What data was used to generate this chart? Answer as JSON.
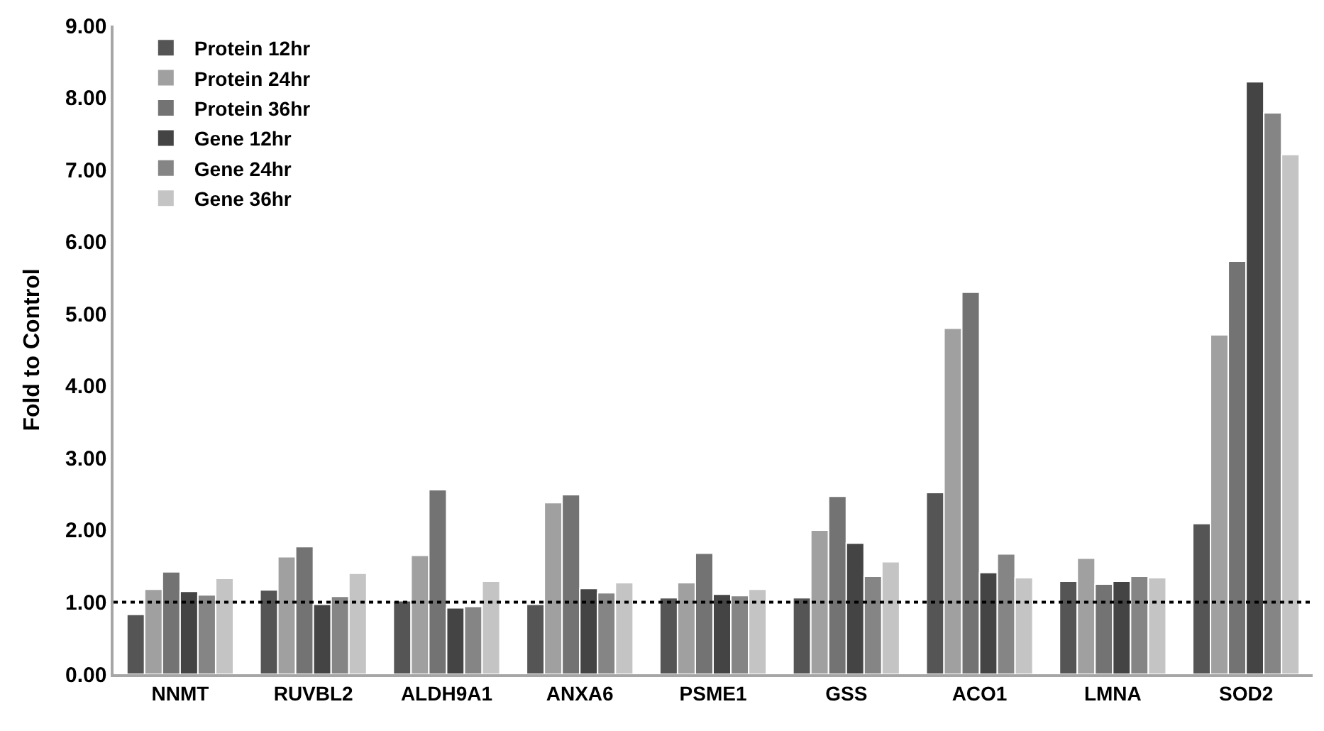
{
  "chart_data": {
    "type": "bar",
    "ylabel": "Fold to Control",
    "categories": [
      "NNMT",
      "RUVBL2",
      "ALDH9A1",
      "ANXA6",
      "PSME1",
      "GSS",
      "ACO1",
      "LMNA",
      "SOD2"
    ],
    "series": [
      {
        "name": "Protein 12hr",
        "color": "#555555",
        "values": [
          0.83,
          1.17,
          1.02,
          0.97,
          1.06,
          1.06,
          2.52,
          1.29,
          2.09
        ]
      },
      {
        "name": "Protein 24hr",
        "color": "#a0a0a0",
        "values": [
          1.18,
          1.63,
          1.65,
          2.38,
          1.27,
          2.0,
          4.8,
          1.61,
          4.71
        ]
      },
      {
        "name": "Protein 36hr",
        "color": "#737373",
        "values": [
          1.42,
          1.77,
          2.56,
          2.49,
          1.68,
          2.47,
          5.3,
          1.25,
          5.73
        ]
      },
      {
        "name": "Gene 12hr",
        "color": "#444444",
        "values": [
          1.15,
          0.97,
          0.92,
          1.19,
          1.11,
          1.82,
          1.41,
          1.29,
          8.22
        ]
      },
      {
        "name": "Gene 24hr",
        "color": "#858585",
        "values": [
          1.1,
          1.08,
          0.94,
          1.13,
          1.09,
          1.36,
          1.67,
          1.36,
          7.79
        ]
      },
      {
        "name": "Gene 36hr",
        "color": "#c4c4c4",
        "values": [
          1.33,
          1.4,
          1.29,
          1.27,
          1.18,
          1.56,
          1.34,
          1.34,
          7.21
        ]
      }
    ],
    "ylim": [
      0,
      9
    ],
    "yticks": [
      {
        "value": 0,
        "label": "0.00"
      },
      {
        "value": 1,
        "label": "1.00"
      },
      {
        "value": 2,
        "label": "2.00"
      },
      {
        "value": 3,
        "label": "3.00"
      },
      {
        "value": 4,
        "label": "4.00"
      },
      {
        "value": 5,
        "label": "5.00"
      },
      {
        "value": 6,
        "label": "6.00"
      },
      {
        "value": 7,
        "label": "7.00"
      },
      {
        "value": 8,
        "label": "8.00"
      },
      {
        "value": 9,
        "label": "9.00"
      }
    ],
    "ref_lines": [
      {
        "axis": "y",
        "value": 1,
        "color": "#000000",
        "line_style": "dotted"
      }
    ],
    "grid": false,
    "legend": "top left"
  }
}
